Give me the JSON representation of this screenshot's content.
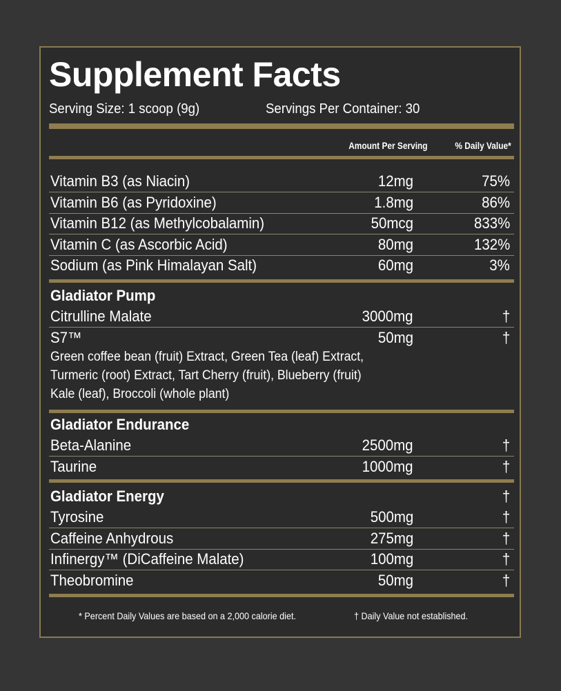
{
  "title": "Supplement Facts",
  "serving_size": "Serving Size: 1 scoop (9g)",
  "servings_per_container": "Servings Per Container: 30",
  "headers": {
    "amount": "Amount Per Serving",
    "dv": "% Daily Value*"
  },
  "vitamins": [
    {
      "name": "Vitamin B3 (as Niacin)",
      "amount": "12mg",
      "dv": "75%"
    },
    {
      "name": "Vitamin B6 (as Pyridoxine)",
      "amount": "1.8mg",
      "dv": "86%"
    },
    {
      "name": "Vitamin B12 (as Methylcobalamin)",
      "amount": "50mcg",
      "dv": "833%"
    },
    {
      "name": "Vitamin C (as Ascorbic Acid)",
      "amount": "80mg",
      "dv": "132%"
    },
    {
      "name": "Sodium (as Pink Himalayan Salt)",
      "amount": "60mg",
      "dv": "3%"
    }
  ],
  "pump": {
    "title": "Gladiator Pump",
    "items": [
      {
        "name": "Citrulline Malate",
        "amount": "3000mg",
        "dv": "†"
      },
      {
        "name": "S7™",
        "amount": "50mg",
        "dv": "†"
      }
    ],
    "s7_desc": [
      "Green coffee bean (fruit) Extract, Green Tea (leaf) Extract,",
      "Turmeric (root) Extract, Tart Cherry (fruit), Blueberry (fruit)",
      "Kale (leaf), Broccoli (whole plant)"
    ]
  },
  "endurance": {
    "title": "Gladiator Endurance",
    "items": [
      {
        "name": "Beta-Alanine",
        "amount": "2500mg",
        "dv": "†"
      },
      {
        "name": "Taurine",
        "amount": "1000mg",
        "dv": "†"
      }
    ]
  },
  "energy": {
    "title": "Gladiator Energy",
    "dv": "†",
    "items": [
      {
        "name": "Tyrosine",
        "amount": "500mg",
        "dv": "†"
      },
      {
        "name": "Caffeine Anhydrous",
        "amount": "275mg",
        "dv": "†"
      },
      {
        "name": "Infinergy™ (DiCaffeine Malate)",
        "amount": "100mg",
        "dv": "†"
      },
      {
        "name": "Theobromine",
        "amount": "50mg",
        "dv": "†"
      }
    ]
  },
  "footnotes": {
    "dv": "* Percent Daily Values are based on a 2,000 calorie diet.",
    "dagger": "† Daily Value not established."
  },
  "colors": {
    "background": "#353535",
    "panel": "#2b2b2b",
    "gold": "#8f7d50"
  }
}
